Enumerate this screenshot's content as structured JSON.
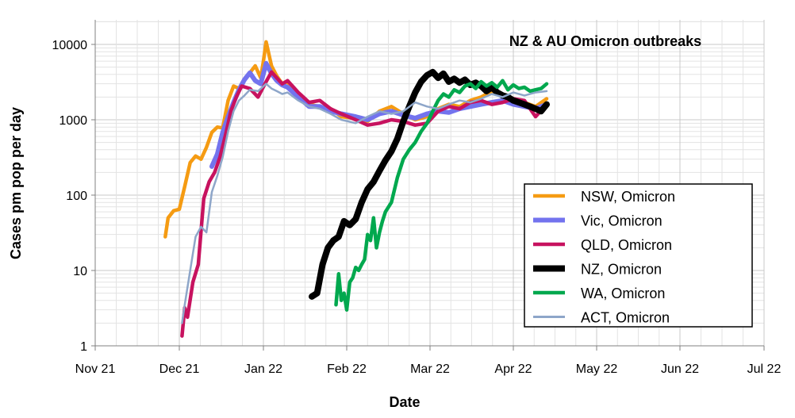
{
  "chart_data": {
    "type": "line",
    "title": "NZ & AU Omicron outbreaks",
    "xlabel": "Date",
    "ylabel": "Cases pm pop per day",
    "y_scale": "log",
    "ylim": [
      1,
      20000
    ],
    "y_ticks": [
      {
        "value": 1,
        "label": "1"
      },
      {
        "value": 10,
        "label": "10"
      },
      {
        "value": 100,
        "label": "100"
      },
      {
        "value": 1000,
        "label": "1000"
      },
      {
        "value": 10000,
        "label": "10000"
      }
    ],
    "x_ticks": [
      "Nov 21",
      "Dec 21",
      "Jan 22",
      "Feb 22",
      "Mar 22",
      "Apr 22",
      "May 22",
      "Jun 22",
      "Jul 22"
    ],
    "grid": true,
    "legend_position": "right",
    "series": [
      {
        "name": "NSW, Omicron",
        "color": "#f59b12",
        "width": 4.5,
        "x": [
          "2021-11-26",
          "2021-11-27",
          "2021-11-29",
          "2021-12-01",
          "2021-12-03",
          "2021-12-05",
          "2021-12-07",
          "2021-12-09",
          "2021-12-11",
          "2021-12-13",
          "2021-12-15",
          "2021-12-17",
          "2021-12-19",
          "2021-12-21",
          "2021-12-23",
          "2021-12-25",
          "2021-12-27",
          "2021-12-29",
          "2021-12-31",
          "2022-01-01",
          "2022-01-02",
          "2022-01-04",
          "2022-01-06",
          "2022-01-08",
          "2022-01-10",
          "2022-01-14",
          "2022-01-18",
          "2022-01-22",
          "2022-01-26",
          "2022-01-30",
          "2022-02-04",
          "2022-02-08",
          "2022-02-12",
          "2022-02-16",
          "2022-02-20",
          "2022-02-24",
          "2022-02-28",
          "2022-03-04",
          "2022-03-08",
          "2022-03-12",
          "2022-03-16",
          "2022-03-20",
          "2022-03-24",
          "2022-03-28",
          "2022-04-01",
          "2022-04-05",
          "2022-04-09",
          "2022-04-13"
        ],
        "y": [
          28,
          50,
          62,
          65,
          130,
          270,
          330,
          300,
          430,
          680,
          800,
          780,
          1800,
          2800,
          2600,
          3500,
          4200,
          5200,
          3600,
          6000,
          10800,
          5200,
          3800,
          3000,
          3200,
          1900,
          1600,
          1500,
          1400,
          1100,
          1050,
          950,
          1300,
          1500,
          1200,
          1000,
          1100,
          1400,
          1600,
          1500,
          1800,
          2000,
          2400,
          2200,
          1900,
          1700,
          1500,
          1900
        ]
      },
      {
        "name": "Vic, Omicron",
        "color": "#7373ee",
        "width": 6,
        "x": [
          "2021-12-13",
          "2021-12-15",
          "2021-12-17",
          "2021-12-19",
          "2021-12-21",
          "2021-12-23",
          "2021-12-25",
          "2021-12-27",
          "2021-12-29",
          "2021-12-31",
          "2022-01-02",
          "2022-01-04",
          "2022-01-06",
          "2022-01-08",
          "2022-01-10",
          "2022-01-14",
          "2022-01-18",
          "2022-01-22",
          "2022-01-26",
          "2022-01-30",
          "2022-02-04",
          "2022-02-08",
          "2022-02-12",
          "2022-02-16",
          "2022-02-20",
          "2022-02-24",
          "2022-02-28",
          "2022-03-04",
          "2022-03-08",
          "2022-03-12",
          "2022-03-16",
          "2022-03-20",
          "2022-03-24",
          "2022-03-28",
          "2022-04-01",
          "2022-04-05",
          "2022-04-09",
          "2022-04-13"
        ],
        "y": [
          240,
          350,
          680,
          1100,
          1700,
          2500,
          3400,
          4200,
          3300,
          3000,
          5600,
          4100,
          3300,
          2900,
          2700,
          2000,
          1500,
          1500,
          1300,
          1200,
          1100,
          1000,
          1200,
          1300,
          1150,
          1050,
          1200,
          1300,
          1250,
          1400,
          1500,
          1600,
          1700,
          1800,
          1600,
          1500,
          1400,
          1600
        ]
      },
      {
        "name": "QLD, Omicron",
        "color": "#c7125f",
        "width": 4.5,
        "x": [
          "2021-12-02",
          "2021-12-03",
          "2021-12-04",
          "2021-12-06",
          "2021-12-08",
          "2021-12-10",
          "2021-12-12",
          "2021-12-14",
          "2021-12-16",
          "2021-12-18",
          "2021-12-20",
          "2021-12-22",
          "2021-12-24",
          "2021-12-27",
          "2021-12-30",
          "2022-01-02",
          "2022-01-04",
          "2022-01-06",
          "2022-01-08",
          "2022-01-10",
          "2022-01-14",
          "2022-01-18",
          "2022-01-22",
          "2022-01-26",
          "2022-01-30",
          "2022-02-04",
          "2022-02-08",
          "2022-02-12",
          "2022-02-16",
          "2022-02-20",
          "2022-02-24",
          "2022-02-28",
          "2022-03-04",
          "2022-03-08",
          "2022-03-12",
          "2022-03-16",
          "2022-03-20",
          "2022-03-24",
          "2022-03-28",
          "2022-04-01",
          "2022-04-05",
          "2022-04-09",
          "2022-04-13"
        ],
        "y": [
          1.35,
          3.2,
          2.4,
          7,
          12,
          90,
          150,
          200,
          320,
          620,
          1300,
          2000,
          2800,
          2600,
          2000,
          3200,
          4300,
          3600,
          3000,
          3300,
          2300,
          1700,
          1800,
          1400,
          1200,
          1000,
          850,
          900,
          1000,
          950,
          850,
          900,
          1300,
          1500,
          1400,
          1700,
          1800,
          1600,
          1700,
          1900,
          1800,
          1100,
          1600
        ]
      },
      {
        "name": "NZ, Omicron",
        "color": "#000000",
        "width": 8,
        "x": [
          "2022-01-19",
          "2022-01-21",
          "2022-01-23",
          "2022-01-25",
          "2022-01-27",
          "2022-01-29",
          "2022-01-31",
          "2022-02-02",
          "2022-02-04",
          "2022-02-06",
          "2022-02-08",
          "2022-02-10",
          "2022-02-12",
          "2022-02-14",
          "2022-02-16",
          "2022-02-18",
          "2022-02-20",
          "2022-02-22",
          "2022-02-24",
          "2022-02-26",
          "2022-02-28",
          "2022-03-02",
          "2022-03-04",
          "2022-03-06",
          "2022-03-08",
          "2022-03-10",
          "2022-03-12",
          "2022-03-14",
          "2022-03-16",
          "2022-03-18",
          "2022-03-20",
          "2022-03-22",
          "2022-03-24",
          "2022-03-26",
          "2022-03-28",
          "2022-03-30",
          "2022-04-01",
          "2022-04-03",
          "2022-04-05",
          "2022-04-07",
          "2022-04-09",
          "2022-04-11",
          "2022-04-13"
        ],
        "y": [
          4.5,
          5,
          12,
          20,
          25,
          28,
          45,
          40,
          48,
          80,
          120,
          150,
          210,
          290,
          380,
          560,
          950,
          1500,
          2300,
          3200,
          3900,
          4300,
          3600,
          4100,
          3200,
          3500,
          3100,
          3400,
          2900,
          3100,
          2800,
          2400,
          2700,
          2300,
          2100,
          2000,
          1800,
          1700,
          1600,
          1500,
          1400,
          1300,
          1600
        ]
      },
      {
        "name": "WA, Omicron",
        "color": "#00a84e",
        "width": 4.5,
        "x": [
          "2022-01-28",
          "2022-01-29",
          "2022-01-30",
          "2022-01-31",
          "2022-02-01",
          "2022-02-02",
          "2022-02-03",
          "2022-02-04",
          "2022-02-05",
          "2022-02-06",
          "2022-02-07",
          "2022-02-08",
          "2022-02-09",
          "2022-02-10",
          "2022-02-11",
          "2022-02-12",
          "2022-02-13",
          "2022-02-14",
          "2022-02-16",
          "2022-02-18",
          "2022-02-20",
          "2022-02-22",
          "2022-02-24",
          "2022-02-26",
          "2022-02-28",
          "2022-03-02",
          "2022-03-04",
          "2022-03-06",
          "2022-03-08",
          "2022-03-10",
          "2022-03-12",
          "2022-03-14",
          "2022-03-16",
          "2022-03-18",
          "2022-03-20",
          "2022-03-22",
          "2022-03-24",
          "2022-03-26",
          "2022-03-28",
          "2022-03-30",
          "2022-04-01",
          "2022-04-03",
          "2022-04-05",
          "2022-04-07",
          "2022-04-09",
          "2022-04-11",
          "2022-04-13"
        ],
        "y": [
          3.5,
          9,
          4,
          5,
          3,
          7,
          8,
          11,
          10,
          12,
          14,
          30,
          25,
          50,
          20,
          32,
          45,
          60,
          80,
          170,
          300,
          400,
          500,
          700,
          900,
          1300,
          1800,
          2200,
          2000,
          2500,
          2300,
          2800,
          3000,
          2600,
          3200,
          2800,
          3100,
          2700,
          3300,
          2500,
          2900,
          2600,
          2700,
          2400,
          2500,
          2600,
          3000
        ]
      },
      {
        "name": "ACT, Omicron",
        "color": "#8ea6c9",
        "width": 2.5,
        "x": [
          "2021-12-02",
          "2021-12-03",
          "2021-12-05",
          "2021-12-07",
          "2021-12-09",
          "2021-12-11",
          "2021-12-13",
          "2021-12-15",
          "2021-12-17",
          "2021-12-19",
          "2021-12-21",
          "2021-12-23",
          "2021-12-25",
          "2021-12-27",
          "2021-12-30",
          "2022-01-02",
          "2022-01-04",
          "2022-01-06",
          "2022-01-08",
          "2022-01-10",
          "2022-01-14",
          "2022-01-18",
          "2022-01-22",
          "2022-01-26",
          "2022-01-30",
          "2022-02-04",
          "2022-02-08",
          "2022-02-12",
          "2022-02-16",
          "2022-02-20",
          "2022-02-24",
          "2022-02-28",
          "2022-03-04",
          "2022-03-08",
          "2022-03-12",
          "2022-03-16",
          "2022-03-20",
          "2022-03-24",
          "2022-03-28",
          "2022-04-01",
          "2022-04-05",
          "2022-04-09",
          "2022-04-13"
        ],
        "y": [
          2,
          3.5,
          10,
          28,
          38,
          32,
          110,
          180,
          320,
          700,
          1300,
          1800,
          2100,
          2500,
          2400,
          3000,
          2600,
          2400,
          2200,
          2300,
          1800,
          1500,
          1400,
          1200,
          1000,
          900,
          1100,
          1300,
          1200,
          1300,
          1700,
          1500,
          1400,
          1600,
          1800,
          1700,
          1900,
          2200,
          2000,
          2300,
          2100,
          2300,
          2400
        ]
      }
    ]
  }
}
